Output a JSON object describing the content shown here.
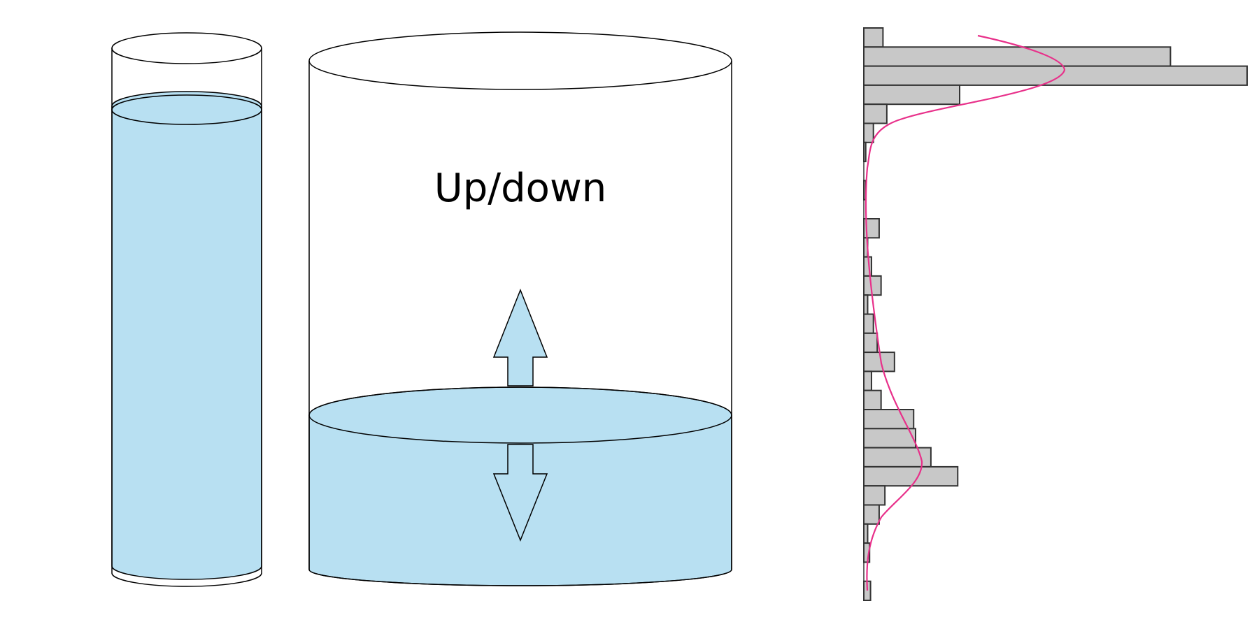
{
  "diagram": {
    "label": "Up/down",
    "colors": {
      "water": "#b8e0f2",
      "outline": "#000000",
      "bar_fill": "#c8c8c8",
      "bar_stroke": "#333333",
      "density_curve": "#e8308a"
    }
  },
  "chart_data": {
    "type": "bar",
    "orientation": "horizontal",
    "title": "",
    "xlabel": "",
    "ylabel": "",
    "bins": 30,
    "values": [
      1.0,
      16.0,
      20.0,
      5.0,
      1.2,
      0.5,
      0.1,
      0.0,
      0.1,
      0.0,
      0.8,
      0.2,
      0.4,
      0.9,
      0.2,
      0.5,
      0.7,
      1.6,
      0.4,
      0.9,
      2.6,
      2.7,
      3.5,
      4.9,
      1.1,
      0.8,
      0.2,
      0.3,
      0.0,
      0.35
    ],
    "density_curve": {
      "present": true
    }
  }
}
